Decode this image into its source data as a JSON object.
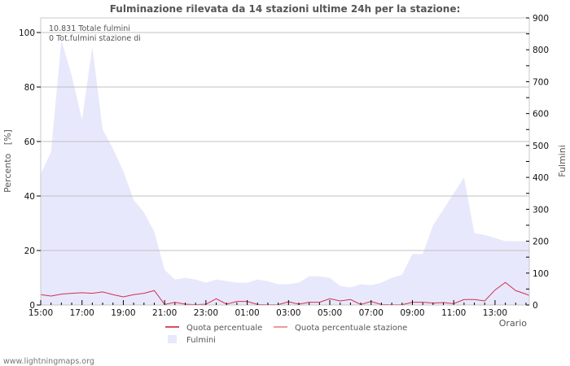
{
  "title": "Fulminazione rilevata da 14 stazioni ultime 24h per la stazione:",
  "annotations": [
    "10.831 Totale fulmini",
    "0 Tot.fulmini stazione di"
  ],
  "footer": "www.lightningmaps.org",
  "colors": {
    "area": "#e8e8fc",
    "line": "#d03050",
    "line_station": "#f09090",
    "grid": "#c0c0c0",
    "axis": "#c8c8c8"
  },
  "chart_data": {
    "type": "line",
    "title": "Fulminazione rilevata da 14 stazioni ultime 24h per la stazione:",
    "xlabel": "Orario",
    "ylabel": "Percento   [%]",
    "ylabel_right": "Fulmini",
    "ylim": [
      0,
      100
    ],
    "ylim_right": [
      0,
      900
    ],
    "yticks": [
      0,
      20,
      40,
      60,
      80,
      100
    ],
    "yticks_right": [
      0,
      100,
      200,
      300,
      400,
      500,
      600,
      700,
      800,
      900
    ],
    "xticks": [
      "15:00",
      "17:00",
      "19:00",
      "21:00",
      "23:00",
      "01:00",
      "03:00",
      "05:00",
      "07:00",
      "09:00",
      "11:00",
      "13:00"
    ],
    "grid": true,
    "legend": [
      "Quota percentuale",
      "Quota percentuale stazione",
      "Fulmini"
    ],
    "legend_position": "bottom",
    "x": [
      "15:00",
      "15:30",
      "16:00",
      "16:30",
      "17:00",
      "17:30",
      "18:00",
      "18:30",
      "19:00",
      "19:30",
      "20:00",
      "20:30",
      "21:00",
      "21:30",
      "22:00",
      "22:30",
      "23:00",
      "23:30",
      "00:00",
      "00:30",
      "01:00",
      "01:30",
      "02:00",
      "02:30",
      "03:00",
      "03:30",
      "04:00",
      "04:30",
      "05:00",
      "05:30",
      "06:00",
      "06:30",
      "07:00",
      "07:30",
      "08:00",
      "08:30",
      "09:00",
      "09:30",
      "10:00",
      "10:30",
      "11:00",
      "11:30",
      "12:00",
      "12:30",
      "13:00",
      "13:30",
      "14:00",
      "14:30"
    ],
    "series": [
      {
        "name": "Fulmini",
        "axis": "right",
        "type": "area",
        "values": [
          410,
          480,
          830,
          720,
          580,
          810,
          550,
          490,
          420,
          330,
          290,
          230,
          110,
          80,
          85,
          80,
          70,
          80,
          75,
          70,
          70,
          80,
          75,
          65,
          65,
          70,
          90,
          90,
          85,
          60,
          55,
          65,
          62,
          70,
          85,
          95,
          160,
          160,
          250,
          300,
          350,
          400,
          225,
          220,
          210,
          200,
          200,
          200
        ]
      },
      {
        "name": "Quota percentuale",
        "axis": "left",
        "type": "line",
        "values": [
          3.8,
          3.3,
          4.0,
          4.3,
          4.5,
          4.3,
          4.8,
          3.8,
          3.0,
          3.8,
          4.3,
          5.3,
          0.2,
          1.0,
          0.3,
          0.1,
          0.3,
          2.3,
          0.3,
          1.3,
          1.3,
          0.2,
          0.1,
          0.1,
          1.2,
          0.3,
          1.0,
          1.0,
          2.3,
          1.5,
          2.0,
          0.2,
          1.3,
          0.2,
          0.1,
          0.1,
          1.0,
          1.0,
          0.7,
          0.9,
          0.5,
          2.0,
          2.0,
          1.5,
          5.5,
          8.3,
          5.3,
          4.0
        ]
      },
      {
        "name": "Quota percentuale stazione",
        "axis": "left",
        "type": "line",
        "values": []
      }
    ]
  }
}
